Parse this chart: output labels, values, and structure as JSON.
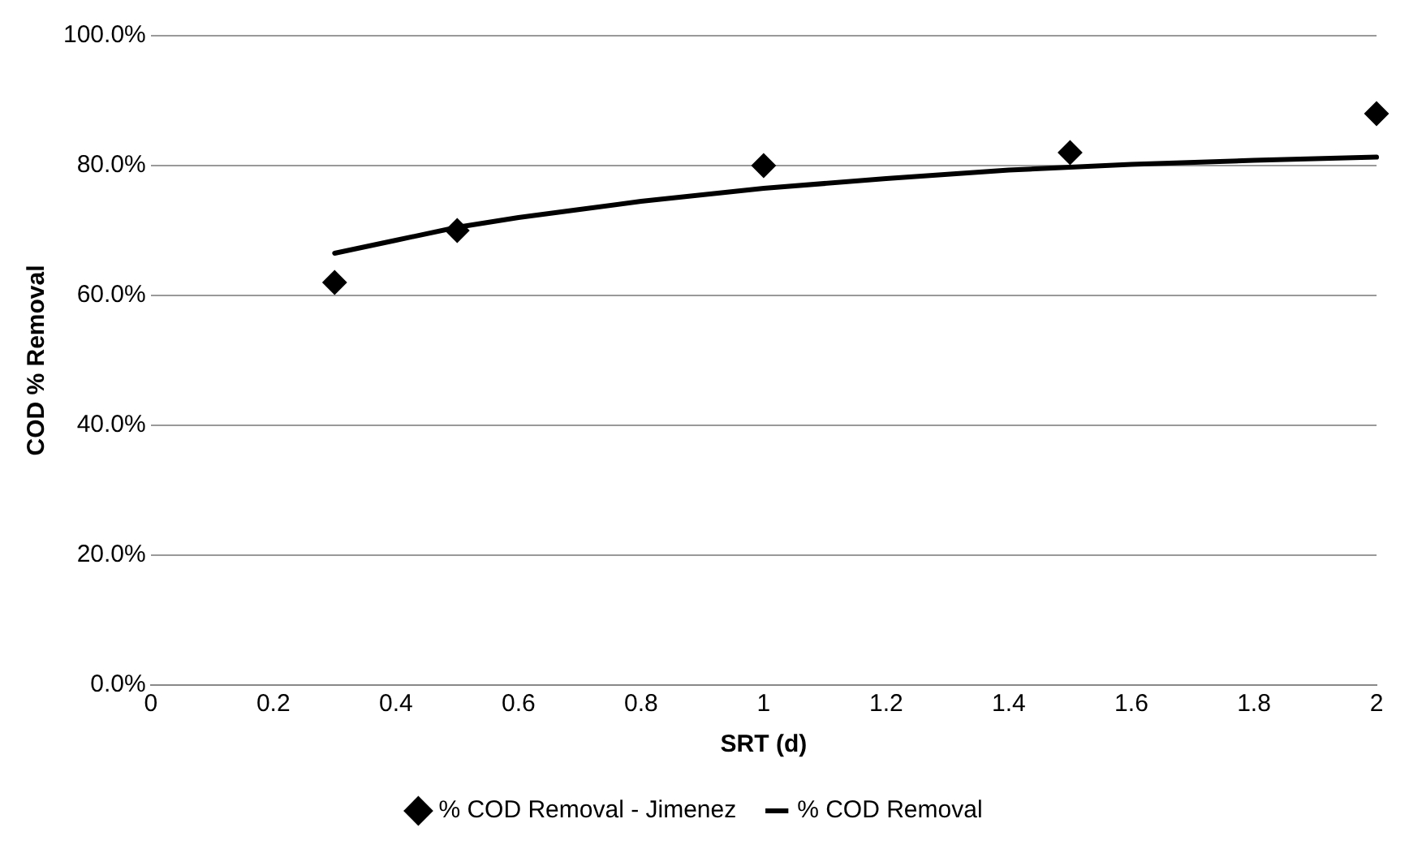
{
  "chart_data": {
    "type": "scatter",
    "xlabel": "SRT (d)",
    "ylabel": "COD % Removal",
    "xlim": [
      0,
      2
    ],
    "xticks": [
      0,
      0.2,
      0.4,
      0.6,
      0.8,
      1,
      1.2,
      1.4,
      1.6,
      1.8,
      2
    ],
    "ylim": [
      0,
      100
    ],
    "yticks": [
      {
        "value": 0,
        "label": "0.0%"
      },
      {
        "value": 20,
        "label": "20.0%"
      },
      {
        "value": 40,
        "label": "40.0%"
      },
      {
        "value": 60,
        "label": "60.0%"
      },
      {
        "value": 80,
        "label": "80.0%"
      },
      {
        "value": 100,
        "label": "100.0%"
      }
    ],
    "grid": "y",
    "legend": "bottom",
    "series": [
      {
        "name": "% COD Removal - Jimenez",
        "type": "scatter",
        "marker": "diamond",
        "color": "#000000",
        "x": [
          0.3,
          0.5,
          1,
          1.5,
          2
        ],
        "values": [
          62,
          70,
          80,
          82,
          88
        ]
      },
      {
        "name": "% COD Removal",
        "type": "line",
        "marker": "none",
        "color": "#000000",
        "x": [
          0.3,
          0.4,
          0.5,
          0.6,
          0.8,
          1,
          1.2,
          1.4,
          1.6,
          1.8,
          2
        ],
        "values": [
          66.5,
          68.5,
          70.5,
          72,
          74.5,
          76.5,
          78,
          79.3,
          80.2,
          80.8,
          81.3
        ]
      }
    ]
  }
}
